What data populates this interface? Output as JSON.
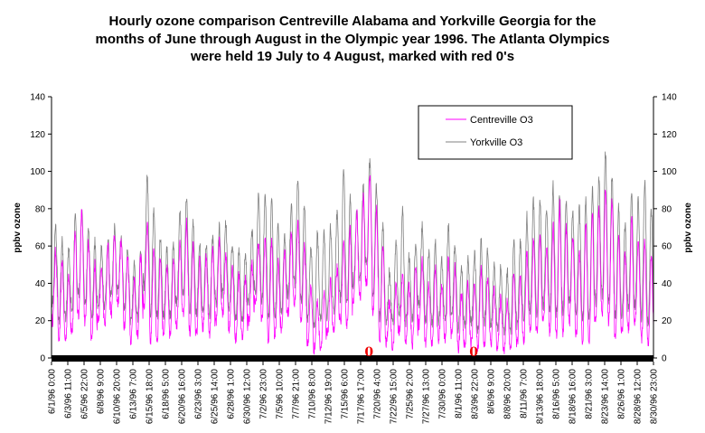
{
  "chart_data": {
    "type": "line",
    "title_lines": [
      "Hourly ozone comparison Centreville Alabama and Yorkville Georgia for the",
      "months of June through August in the Olympic year 1996. The Atlanta Olympics",
      "were held 19 July to 4 August, marked with red 0's"
    ],
    "ylabel": "ppbv ozone",
    "ylabel_right": "ppbv ozone",
    "ylim": [
      0,
      140
    ],
    "yticks": [
      "0",
      "20",
      "40",
      "60",
      "80",
      "100",
      "120",
      "140"
    ],
    "grid": false,
    "legend_position": "top-right",
    "x_labels": [
      "6/1/96 0:00",
      "6/3/96 11:00",
      "6/5/96 22:00",
      "6/8/96 9:00",
      "6/10/96 20:00",
      "6/13/96 7:00",
      "6/15/96 18:00",
      "6/18/96 5:00",
      "6/20/96 16:00",
      "6/23/96 3:00",
      "6/25/96 14:00",
      "6/28/96 1:00",
      "6/30/96 12:00",
      "7/2/96 23:00",
      "7/5/96 10:00",
      "7/7/96 21:00",
      "7/10/96 8:00",
      "7/12/96 19:00",
      "7/15/96 6:00",
      "7/17/96 17:00",
      "7/20/96 4:00",
      "7/22/96 15:00",
      "7/25/96 2:00",
      "7/27/96 13:00",
      "7/30/96 0:00",
      "8/1/96 11:00",
      "8/3/96 22:00",
      "8/6/96 9:00",
      "8/8/96 20:00",
      "8/11/96 7:00",
      "8/13/96 18:00",
      "8/16/96 5:00",
      "8/18/96 16:00",
      "8/21/96 3:00",
      "8/23/96 14:00",
      "8/26/96 1:00",
      "8/28/96 12:00",
      "8/30/96 23:00"
    ],
    "series": [
      {
        "name": "Centreville  O3",
        "color": "#ff00ff",
        "daily_max": [
          57,
          52,
          45,
          68,
          78,
          62,
          50,
          48,
          60,
          67,
          62,
          55,
          42,
          55,
          73,
          60,
          54,
          48,
          55,
          64,
          72,
          60,
          52,
          54,
          58,
          62,
          54,
          50,
          44,
          42,
          50,
          62,
          64,
          62,
          52,
          58,
          66,
          72,
          60,
          38,
          30,
          34,
          40,
          48,
          60,
          68,
          78,
          86,
          98,
          80,
          60,
          30,
          40,
          44,
          38,
          50,
          52,
          40,
          48,
          40,
          52,
          48,
          34,
          40,
          40,
          48,
          42,
          36,
          32,
          30,
          46,
          42,
          56,
          64,
          64,
          60,
          72,
          82,
          70,
          66,
          58,
          72,
          78,
          80,
          92,
          86,
          66,
          56,
          74,
          62,
          62,
          54
        ],
        "daily_min": [
          20,
          10,
          10,
          14,
          24,
          20,
          10,
          20,
          18,
          24,
          30,
          18,
          10,
          12,
          28,
          10,
          10,
          14,
          12,
          18,
          22,
          14,
          12,
          16,
          12,
          20,
          24,
          16,
          10,
          12,
          20,
          28,
          20,
          10,
          12,
          16,
          24,
          30,
          20,
          8,
          5,
          6,
          12,
          14,
          20,
          18,
          30,
          32,
          40,
          24,
          10,
          8,
          6,
          14,
          10,
          8,
          18,
          8,
          8,
          10,
          10,
          12,
          5,
          6,
          8,
          5,
          8,
          8,
          6,
          5,
          5,
          8,
          10,
          15,
          14,
          18,
          14,
          12,
          14,
          20,
          12,
          10,
          10,
          20,
          24,
          20,
          10,
          14,
          16,
          18,
          10,
          8
        ]
      },
      {
        "name": "Yorkville  O3",
        "color": "#808080",
        "daily_max": [
          70,
          62,
          58,
          75,
          82,
          68,
          62,
          58,
          64,
          70,
          65,
          58,
          50,
          58,
          96,
          80,
          66,
          58,
          62,
          78,
          86,
          74,
          62,
          62,
          64,
          70,
          72,
          62,
          58,
          56,
          68,
          86,
          88,
          84,
          72,
          66,
          82,
          96,
          82,
          60,
          66,
          68,
          70,
          78,
          102,
          86,
          80,
          92,
          106,
          92,
          70,
          46,
          62,
          78,
          54,
          62,
          70,
          56,
          62,
          52,
          70,
          62,
          50,
          52,
          56,
          62,
          58,
          50,
          48,
          46,
          62,
          62,
          76,
          84,
          86,
          82,
          92,
          88,
          86,
          78,
          80,
          84,
          90,
          96,
          110,
          98,
          80,
          72,
          90,
          84,
          96,
          80
        ],
        "daily_min": [
          30,
          20,
          22,
          26,
          34,
          30,
          22,
          28,
          28,
          34,
          36,
          28,
          20,
          22,
          38,
          24,
          22,
          24,
          22,
          30,
          34,
          26,
          24,
          26,
          24,
          30,
          34,
          26,
          20,
          22,
          30,
          36,
          30,
          22,
          24,
          26,
          34,
          40,
          30,
          22,
          18,
          20,
          22,
          26,
          32,
          30,
          40,
          42,
          50,
          36,
          22,
          20,
          18,
          24,
          20,
          20,
          28,
          20,
          18,
          20,
          22,
          22,
          16,
          18,
          18,
          16,
          20,
          18,
          16,
          14,
          14,
          18,
          22,
          26,
          24,
          28,
          26,
          24,
          26,
          30,
          24,
          22,
          22,
          30,
          34,
          30,
          22,
          24,
          26,
          28,
          22,
          20
        ]
      }
    ],
    "markers": [
      {
        "label": "0",
        "x_label": "7/19/96",
        "value": 3
      },
      {
        "label": "0",
        "x_label": "8/4/96",
        "value": 3
      }
    ]
  }
}
